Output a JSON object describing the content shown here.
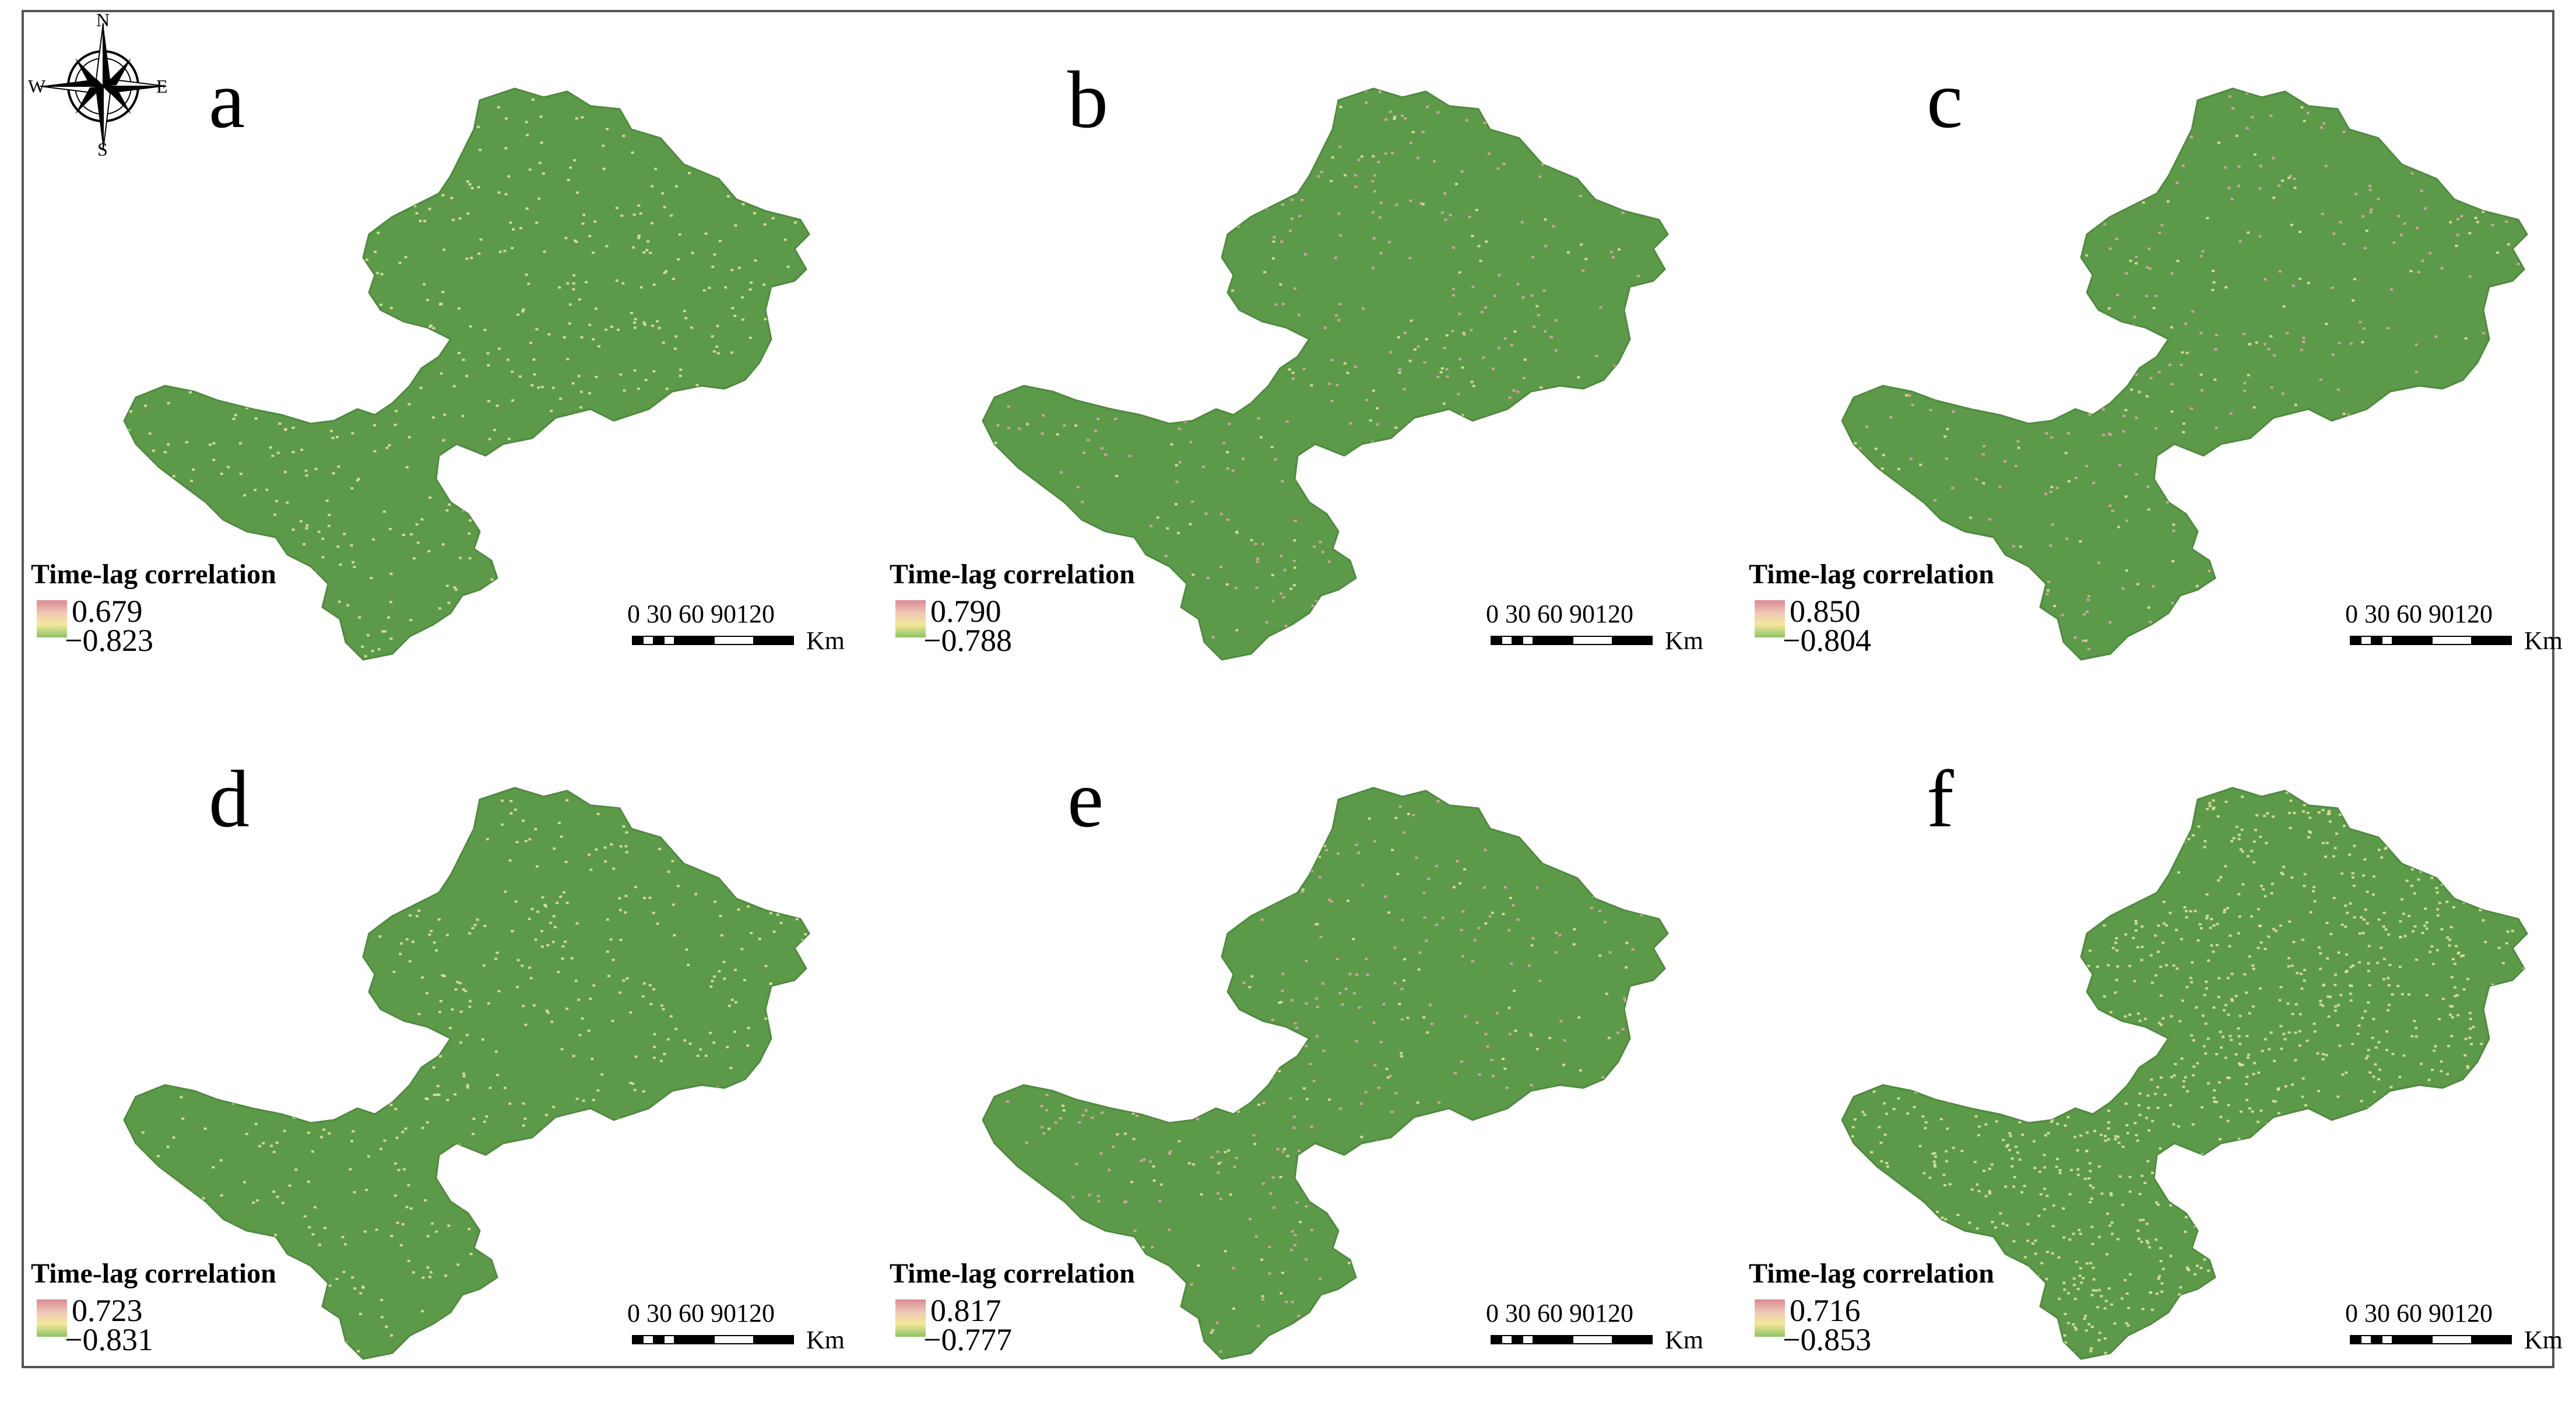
{
  "compass": {
    "north": "N",
    "south": "S",
    "east": "E",
    "west": "W"
  },
  "colors": {
    "base_green": "#5c9a4a",
    "high_pink": "#d98a93",
    "low_yellow": "#e9e39b"
  },
  "panels": [
    {
      "letter": "a",
      "legend_title": "Time-lag correlation",
      "high": "0.679",
      "low": "−0.823",
      "scale_labels": "0  30 60 90120",
      "scale_unit": "Km",
      "speckle": "light"
    },
    {
      "letter": "b",
      "legend_title": "Time-lag correlation",
      "high": "0.790",
      "low": "−0.788",
      "scale_labels": "0  30 60 90120",
      "scale_unit": "Km",
      "speckle": "pink"
    },
    {
      "letter": "c",
      "legend_title": "Time-lag correlation",
      "high": "0.850",
      "low": "−0.804",
      "scale_labels": "0  30 60 90120",
      "scale_unit": "Km",
      "speckle": "pink"
    },
    {
      "letter": "d",
      "legend_title": "Time-lag correlation",
      "high": "0.723",
      "low": "−0.831",
      "scale_labels": "0  30 60 90120",
      "scale_unit": "Km",
      "speckle": "light"
    },
    {
      "letter": "e",
      "legend_title": "Time-lag correlation",
      "high": "0.817",
      "low": "−0.777",
      "scale_labels": "0  30 60 90120",
      "scale_unit": "Km",
      "speckle": "pink"
    },
    {
      "letter": "f",
      "legend_title": "Time-lag correlation",
      "high": "0.716",
      "low": "−0.853",
      "scale_labels": "0  30 60 90120",
      "scale_unit": "Km",
      "speckle": "heavy"
    }
  ]
}
